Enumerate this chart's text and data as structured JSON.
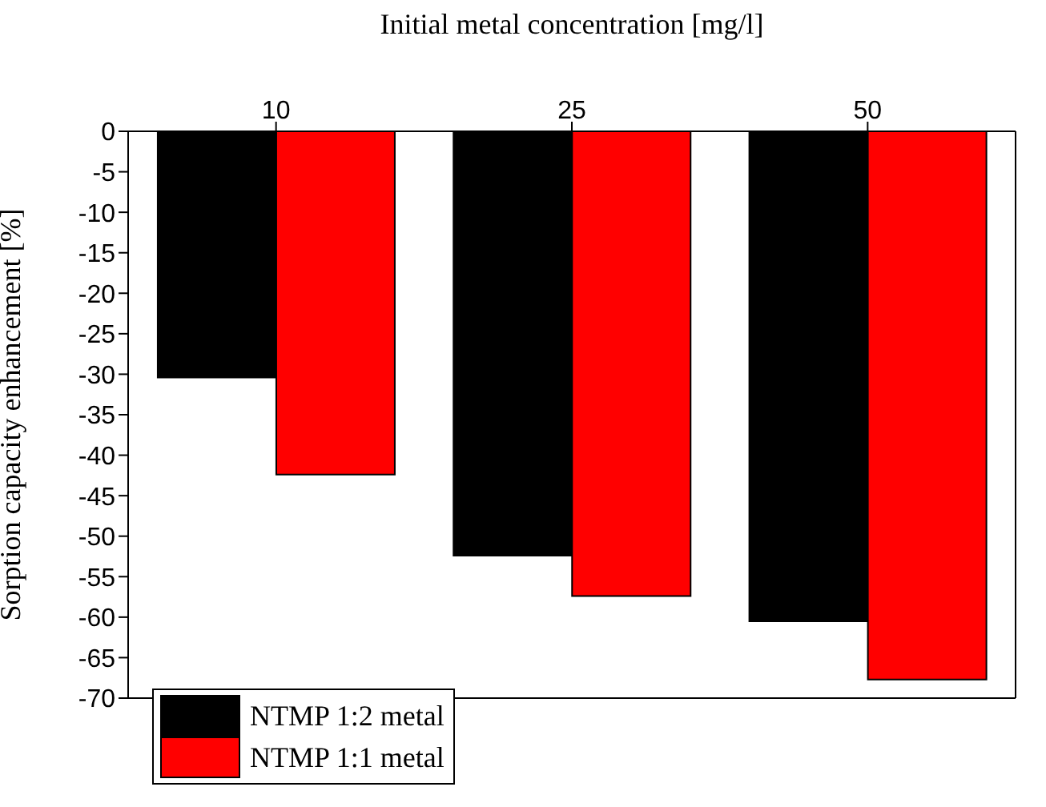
{
  "chart_data": {
    "type": "bar",
    "xlabel": "Initial metal concentration [mg/l]",
    "ylabel": "Sorption capacity enhancement [%]",
    "categories": [
      "10",
      "25",
      "50"
    ],
    "series": [
      {
        "name": "NTMP 1:2 metal",
        "color": "#000000",
        "values": [
          -30.4,
          -52.4,
          -60.5
        ]
      },
      {
        "name": "NTMP 1:1 metal",
        "color": "#ff0000",
        "values": [
          -42.4,
          -57.4,
          -67.7
        ]
      }
    ],
    "ylim": [
      -70,
      0
    ],
    "yticks": [
      0,
      -5,
      -10,
      -15,
      -20,
      -25,
      -30,
      -35,
      -40,
      -45,
      -50,
      -55,
      -60,
      -65,
      -70
    ],
    "legend": "bottom left",
    "grid": false
  }
}
